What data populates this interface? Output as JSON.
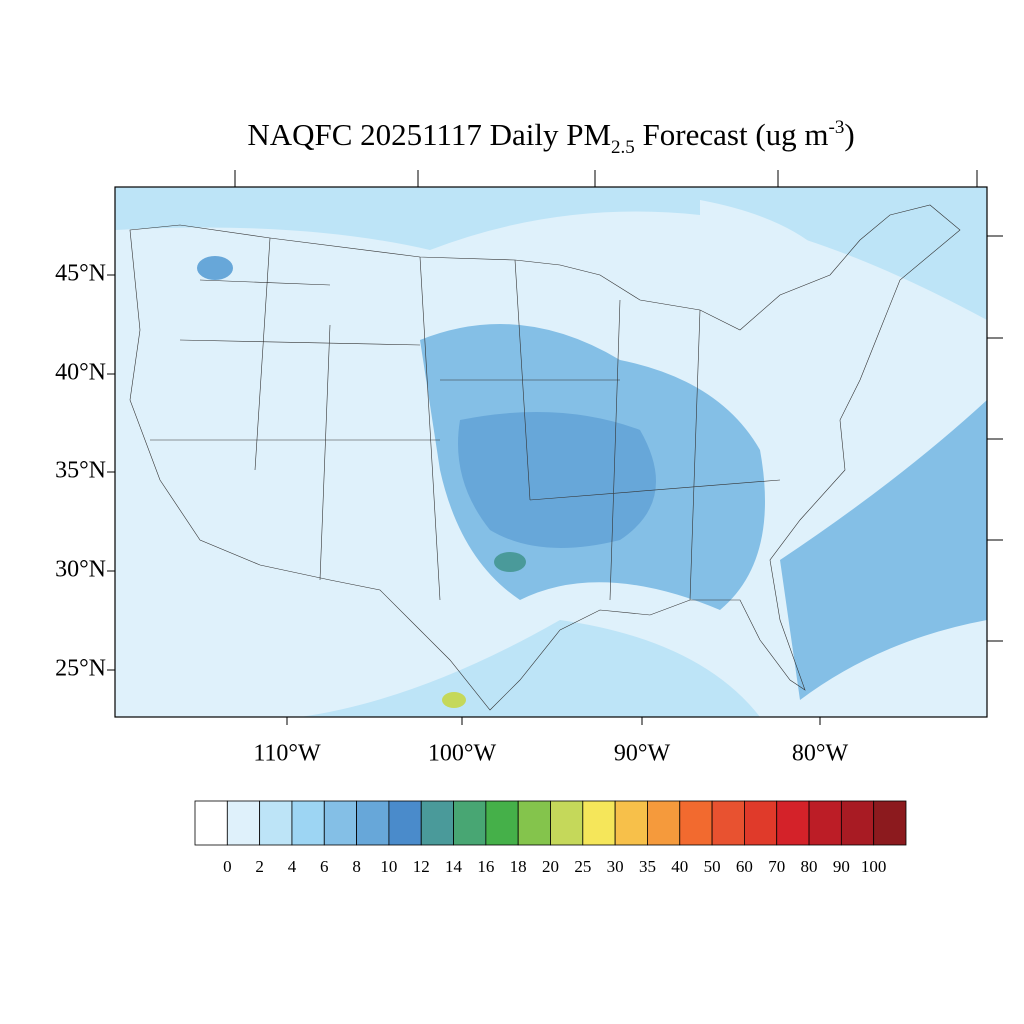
{
  "title": {
    "main": "NAQFC 20251117 Daily PM",
    "sub": "2.5",
    "mid": " Forecast (ug m",
    "sup": "-3",
    "end": ")"
  },
  "lat_labels": [
    "45°N",
    "40°N",
    "35°N",
    "30°N",
    "25°N"
  ],
  "lon_labels": [
    "110°W",
    "100°W",
    "90°W",
    "80°W"
  ],
  "colorbar": {
    "levels": [
      0,
      2,
      4,
      6,
      8,
      10,
      12,
      14,
      16,
      18,
      20,
      25,
      30,
      35,
      40,
      50,
      60,
      70,
      80,
      90,
      100
    ],
    "colors": [
      "#ffffff",
      "#dff1fb",
      "#bde4f7",
      "#9dd5f3",
      "#84bfe6",
      "#67a7d9",
      "#4a8bcb",
      "#4a9a9a",
      "#48a673",
      "#45b049",
      "#84c44c",
      "#c5d85a",
      "#f5e65a",
      "#f7c04a",
      "#f59a3c",
      "#f26a2f",
      "#e85230",
      "#e03a2a",
      "#d42229",
      "#bc1d26",
      "#a81b23",
      "#8c1a1e"
    ]
  }
}
